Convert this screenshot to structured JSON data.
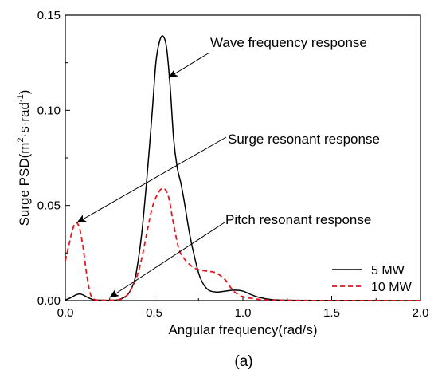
{
  "chart_data": {
    "type": "line",
    "xlabel": "Angular frequency(rad/s)",
    "ylabel_main": "Surge PSD(m",
    "ylabel_sup1": "2",
    "ylabel_mid": "·s·rad",
    "ylabel_sup2": "-1",
    "ylabel_end": ")",
    "xlim": [
      0.0,
      2.0
    ],
    "ylim": [
      0.0,
      0.15
    ],
    "x_ticks": [
      0.0,
      0.5,
      1.0,
      1.5,
      2.0
    ],
    "x_tick_labels": [
      "0.0",
      "0.5",
      "1.0",
      "1.5",
      "2.0"
    ],
    "y_ticks": [
      0.0,
      0.05,
      0.1,
      0.15
    ],
    "y_tick_labels": [
      "0.00",
      "0.05",
      "0.10",
      "0.15"
    ],
    "grid": false,
    "legend_position": "bottom-right",
    "series": [
      {
        "name": "5 MW",
        "color": "#000000",
        "dash": "solid",
        "x": [
          0.0,
          0.03,
          0.06,
          0.08,
          0.1,
          0.13,
          0.16,
          0.2,
          0.25,
          0.3,
          0.35,
          0.38,
          0.4,
          0.43,
          0.46,
          0.49,
          0.51,
          0.53,
          0.55,
          0.57,
          0.59,
          0.61,
          0.63,
          0.65,
          0.67,
          0.7,
          0.73,
          0.76,
          0.8,
          0.85,
          0.9,
          0.95,
          1.0,
          1.05,
          1.1,
          1.2,
          1.5,
          2.0
        ],
        "y": [
          0.0003,
          0.0015,
          0.003,
          0.0035,
          0.003,
          0.0015,
          0.0005,
          0.0002,
          0.0002,
          0.0005,
          0.003,
          0.008,
          0.015,
          0.035,
          0.065,
          0.1,
          0.125,
          0.136,
          0.139,
          0.133,
          0.113,
          0.085,
          0.07,
          0.062,
          0.052,
          0.035,
          0.022,
          0.012,
          0.006,
          0.0045,
          0.005,
          0.0055,
          0.005,
          0.003,
          0.0015,
          0.0003,
          0.0001,
          0.0
        ]
      },
      {
        "name": "10 MW",
        "color": "#e8141b",
        "dash": "dashed",
        "x": [
          0.0,
          0.02,
          0.04,
          0.06,
          0.08,
          0.1,
          0.12,
          0.14,
          0.16,
          0.2,
          0.25,
          0.3,
          0.35,
          0.4,
          0.43,
          0.46,
          0.49,
          0.52,
          0.55,
          0.58,
          0.61,
          0.64,
          0.67,
          0.7,
          0.73,
          0.76,
          0.8,
          0.85,
          0.9,
          0.93,
          0.96,
          1.0,
          1.05,
          1.1,
          1.2,
          1.5,
          2.0
        ],
        "y": [
          0.021,
          0.029,
          0.037,
          0.041,
          0.038,
          0.028,
          0.014,
          0.004,
          0.0008,
          0.0002,
          0.0002,
          0.0004,
          0.003,
          0.012,
          0.022,
          0.036,
          0.049,
          0.056,
          0.059,
          0.055,
          0.04,
          0.027,
          0.022,
          0.019,
          0.017,
          0.016,
          0.0155,
          0.0145,
          0.011,
          0.007,
          0.004,
          0.002,
          0.0012,
          0.0006,
          0.0002,
          0.0,
          0.0
        ]
      }
    ],
    "annotations": [
      {
        "text": "Wave frequency response",
        "target": [
          0.56,
          0.139
        ]
      },
      {
        "text": "Surge resonant response",
        "target": [
          0.06,
          0.041
        ]
      },
      {
        "text": "Pitch resonant response",
        "target": [
          0.23,
          0.0005
        ]
      }
    ]
  },
  "caption": "(a)"
}
